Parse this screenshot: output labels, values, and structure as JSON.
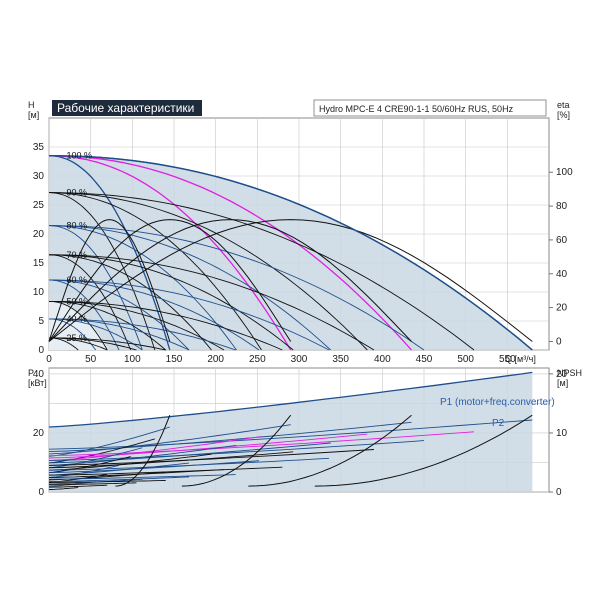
{
  "header": {
    "title": "Рабочие характеристики",
    "subtitle": "Hydro MPC-E 4 CRE90-1-1 50/60Hz RUS, 50Hz"
  },
  "colors": {
    "pump_line": "#111111",
    "full_curve": "#1f4e8c",
    "magenta": "#e020e0",
    "envelope_fill": "#c9d7e3",
    "grid": "#c8c8c8"
  },
  "chart_data": [
    {
      "type": "line",
      "title": "",
      "xlabel": "Q [м³/ч]",
      "ylabel": "H\n[м]",
      "y2label": "eta\n[%]",
      "xlim": [
        0,
        600
      ],
      "ylim": [
        0,
        40
      ],
      "y2lim": [
        -5,
        132
      ],
      "x_ticks": [
        0,
        50,
        100,
        150,
        200,
        250,
        300,
        350,
        400,
        450,
        500,
        550
      ],
      "y_ticks": [
        0,
        5,
        10,
        15,
        20,
        25,
        30,
        35
      ],
      "y2_ticks": [
        0,
        20,
        40,
        60,
        80,
        100
      ],
      "grid": true,
      "speed_labels": [
        "100 %",
        "90 %",
        "80 %",
        "70 %",
        "60 %",
        "50 %",
        "40 %",
        "25 %"
      ],
      "speed_values": [
        100,
        90,
        80,
        70,
        60,
        50,
        40,
        25
      ],
      "h0": 33.5,
      "pump_flow_max_100": [
        150,
        295,
        440,
        585
      ],
      "series": [
        {
          "pumps": 1,
          "qmax": [
            145,
            127,
            112,
            98,
            84,
            70,
            56,
            35
          ]
        },
        {
          "pumps": 2,
          "qmax": [
            290,
            255,
            225,
            195,
            168,
            140,
            112,
            70
          ]
        },
        {
          "pumps": 3,
          "qmax": [
            435,
            382,
            338,
            293,
            252,
            210,
            168,
            105
          ]
        },
        {
          "pumps": 4,
          "qmax": [
            580,
            510,
            450,
            390,
            336,
            280,
            224,
            140
          ]
        }
      ]
    },
    {
      "type": "line",
      "title": "",
      "ylabel": "P\n[кВт]",
      "y2label": "NPSH\n[м]",
      "xlim": [
        0,
        600
      ],
      "ylim": [
        0,
        42
      ],
      "y2lim": [
        0,
        21
      ],
      "y_ticks": [
        0,
        20,
        40
      ],
      "y2_ticks": [
        0,
        10,
        20
      ],
      "grid": true,
      "annotations": [
        "P1 (motor+freq.converter)",
        "P2"
      ],
      "p1_max": 40.5,
      "p2_levels": [
        22,
        18,
        15,
        12,
        9,
        6,
        3.5,
        1.5
      ]
    }
  ]
}
